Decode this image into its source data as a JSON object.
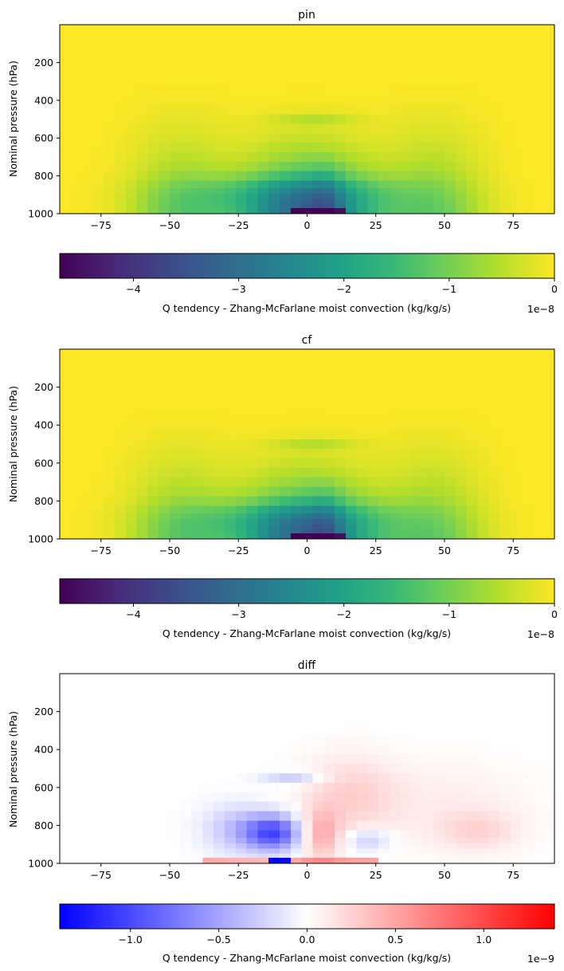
{
  "colors": {
    "viridis": [
      "#440154",
      "#482878",
      "#3e4989",
      "#31688e",
      "#26828e",
      "#1f9e89",
      "#35b779",
      "#6ece58",
      "#b5de2b",
      "#fde725"
    ],
    "bwr": [
      "#0000ff",
      "#ffffff",
      "#ff0000"
    ],
    "axes_frame": "#000000"
  },
  "chart_data": [
    {
      "type": "heatmap",
      "title": "pin",
      "xlabel": "",
      "ylabel": "Nominal pressure (hPa)",
      "xlim": [
        -90,
        90
      ],
      "ylim": [
        1000,
        0
      ],
      "xticks": [
        -75,
        -50,
        -25,
        0,
        25,
        50,
        75
      ],
      "yticks": [
        200,
        400,
        600,
        800,
        1000
      ],
      "colormap": "viridis",
      "vmin": -4.7,
      "vmax": 0,
      "colorbar": {
        "orientation": "horizontal",
        "label": "Q tendency - Zhang-McFarlane moist convection (kg/kg/s)",
        "ticks": [
          -4,
          -3,
          -2,
          -1,
          0
        ],
        "offset_text": "1e−8"
      }
    },
    {
      "type": "heatmap",
      "title": "cf",
      "xlabel": "",
      "ylabel": "Nominal pressure (hPa)",
      "xlim": [
        -90,
        90
      ],
      "ylim": [
        1000,
        0
      ],
      "xticks": [
        -75,
        -50,
        -25,
        0,
        25,
        50,
        75
      ],
      "yticks": [
        200,
        400,
        600,
        800,
        1000
      ],
      "colormap": "viridis",
      "vmin": -4.7,
      "vmax": 0,
      "colorbar": {
        "orientation": "horizontal",
        "label": "Q tendency - Zhang-McFarlane moist convection (kg/kg/s)",
        "ticks": [
          -4,
          -3,
          -2,
          -1,
          0
        ],
        "offset_text": "1e−8"
      }
    },
    {
      "type": "heatmap",
      "title": "diff",
      "xlabel": "",
      "ylabel": "Nominal pressure (hPa)",
      "xlim": [
        -90,
        90
      ],
      "ylim": [
        1000,
        0
      ],
      "xticks": [
        -75,
        -50,
        -25,
        0,
        25,
        50,
        75
      ],
      "yticks": [
        200,
        400,
        600,
        800,
        1000
      ],
      "colormap": "bwr",
      "vmin": -1.4,
      "vmax": 1.4,
      "colorbar": {
        "orientation": "horizontal",
        "label": "Q tendency - Zhang-McFarlane moist convection (kg/kg/s)",
        "ticks": [
          -1.0,
          -0.5,
          0.0,
          0.5,
          1.0
        ],
        "offset_text": "1e−9"
      }
    }
  ]
}
